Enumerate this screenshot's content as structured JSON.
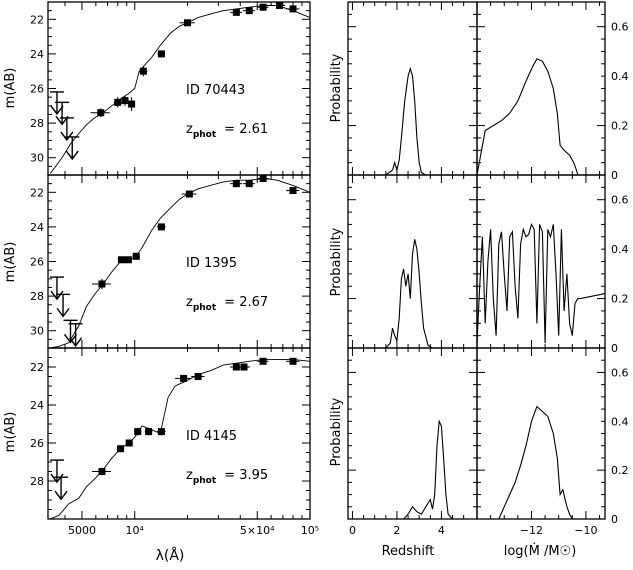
{
  "labels": {
    "sed_ylabel": "m(AB)",
    "sed_xlabel": "λ(Å)",
    "prob_ylabel": "Probability",
    "z_xlabel": "Redshift",
    "mass_xlabel": "log(Ṁ /M☉)",
    "zphot_prefix": "z",
    "zphot_sub": "phot"
  },
  "chart_data": [
    {
      "type": "line",
      "panel": "sed",
      "id_label": "ID 70443",
      "zphot_value": "= 2.61",
      "x_scale": "log",
      "xlim": [
        3200,
        100000
      ],
      "ylim": [
        31,
        21
      ],
      "x_ticks": [
        5000,
        10000,
        50000,
        100000
      ],
      "x_tick_labels": [
        "5000",
        "10⁴",
        "5×10⁴",
        "10⁵"
      ],
      "y_ticks": [
        22,
        24,
        26,
        28,
        30
      ],
      "y_tick_labels": [
        "22",
        "24",
        "26",
        "28",
        "30"
      ],
      "model": {
        "x": [
          3300,
          3600,
          3900,
          4300,
          4800,
          5300,
          5900,
          6600,
          7400,
          8300,
          9200,
          10000,
          10600,
          11500,
          12500,
          14000,
          16000,
          18000,
          20000,
          23000,
          27000,
          32000,
          38000,
          45000,
          55000,
          65000,
          80000,
          100000
        ],
        "y": [
          30.9,
          30.4,
          29.9,
          29.2,
          28.6,
          28.1,
          27.7,
          27.4,
          27.0,
          26.6,
          26.3,
          26.0,
          25.0,
          24.6,
          24.2,
          23.5,
          22.8,
          22.4,
          22.2,
          21.9,
          21.7,
          21.5,
          21.4,
          21.3,
          21.2,
          21.2,
          21.5,
          21.9
        ]
      },
      "photometry": {
        "x": [
          6400,
          8000,
          8800,
          9600,
          11200,
          14200,
          20000,
          38000,
          45000,
          54000,
          67000,
          80000
        ],
        "y": [
          27.4,
          26.8,
          26.7,
          26.9,
          25.0,
          24.0,
          22.2,
          21.6,
          21.5,
          21.3,
          21.2,
          21.4
        ],
        "xerr": [
          800,
          400,
          400,
          400,
          600,
          700,
          2000,
          3000,
          3500,
          4000,
          5000,
          7000
        ],
        "yerr": [
          0.25,
          0.3,
          0.3,
          0.4,
          0.3,
          0.2,
          0.1,
          0.1,
          0.1,
          0.1,
          0.1,
          0.15
        ]
      },
      "upper_limits": {
        "x": [
          3600,
          3850,
          4100,
          4400
        ],
        "y": [
          26.2,
          26.8,
          27.7,
          28.8
        ]
      }
    },
    {
      "type": "line",
      "panel": "sed",
      "id_label": "ID 1395",
      "zphot_value": "= 2.67",
      "x_scale": "log",
      "xlim": [
        3200,
        100000
      ],
      "ylim": [
        31,
        21
      ],
      "x_ticks": [
        5000,
        10000,
        50000,
        100000
      ],
      "x_tick_labels": [
        "5000",
        "10⁴",
        "5×10⁴",
        "10⁵"
      ],
      "y_ticks": [
        22,
        24,
        26,
        28,
        30
      ],
      "y_tick_labels": [
        "22",
        "24",
        "26",
        "28",
        "30"
      ],
      "model": {
        "x": [
          3300,
          3700,
          4200,
          4800,
          5300,
          5900,
          6600,
          7400,
          8300,
          9200,
          10000,
          11000,
          12500,
          14000,
          16000,
          18000,
          20000,
          23000,
          27000,
          32000,
          38000,
          45000,
          55000,
          65000,
          80000,
          100000
        ],
        "y": [
          31.0,
          30.9,
          30.7,
          29.7,
          28.6,
          27.9,
          27.3,
          26.6,
          26.0,
          25.9,
          25.8,
          25.2,
          24.2,
          23.5,
          22.9,
          22.4,
          22.1,
          21.8,
          21.6,
          21.4,
          21.3,
          21.3,
          21.2,
          21.3,
          21.6,
          22.0
        ]
      },
      "photometry": {
        "x": [
          6500,
          8400,
          9200,
          10200,
          14200,
          20500,
          38000,
          45000,
          54000,
          80000
        ],
        "y": [
          27.3,
          25.9,
          25.9,
          25.7,
          24.0,
          22.1,
          21.5,
          21.5,
          21.2,
          21.9
        ],
        "xerr": [
          800,
          400,
          400,
          500,
          800,
          2000,
          3000,
          3500,
          4000,
          7000
        ],
        "yerr": [
          0.3,
          0.15,
          0.15,
          0.15,
          0.15,
          0.1,
          0.1,
          0.1,
          0.1,
          0.15
        ]
      },
      "upper_limits": {
        "x": [
          3600,
          3900,
          4300,
          4600
        ],
        "y": [
          26.9,
          27.9,
          29.4,
          29.6
        ]
      }
    },
    {
      "type": "line",
      "panel": "sed",
      "id_label": "ID 4145",
      "zphot_value": "= 3.95",
      "x_scale": "log",
      "xlim": [
        3200,
        100000
      ],
      "ylim": [
        30,
        21
      ],
      "x_ticks": [
        5000,
        10000,
        50000,
        100000
      ],
      "x_tick_labels": [
        "5000",
        "10⁴",
        "5×10⁴",
        "10⁵"
      ],
      "y_ticks": [
        22,
        24,
        26,
        28
      ],
      "y_tick_labels": [
        "22",
        "24",
        "26",
        "28"
      ],
      "model": {
        "x": [
          3300,
          3700,
          4200,
          4800,
          5300,
          5900,
          6600,
          7400,
          8300,
          9200,
          10000,
          11000,
          12500,
          14000,
          15500,
          17000,
          19000,
          21000,
          23000,
          27000,
          32000,
          38000,
          45000,
          55000,
          65000,
          80000,
          100000
        ],
        "y": [
          30.0,
          29.8,
          29.2,
          28.9,
          28.3,
          27.9,
          27.4,
          26.8,
          26.3,
          26.0,
          25.7,
          25.1,
          25.3,
          25.5,
          23.6,
          23.0,
          22.8,
          22.6,
          22.4,
          22.2,
          21.9,
          21.8,
          21.7,
          21.6,
          21.6,
          21.6,
          21.7
        ]
      },
      "photometry": {
        "x": [
          6500,
          8300,
          9300,
          10400,
          12000,
          14200,
          19000,
          23000,
          38000,
          42000,
          54000,
          80000
        ],
        "y": [
          27.5,
          26.3,
          26.0,
          25.4,
          25.4,
          25.4,
          22.6,
          22.5,
          22.0,
          22.0,
          21.7,
          21.7
        ],
        "xerr": [
          800,
          400,
          400,
          500,
          600,
          800,
          2000,
          2000,
          3000,
          3500,
          4000,
          7000
        ],
        "yerr": [
          0.2,
          0.15,
          0.15,
          0.2,
          0.2,
          0.2,
          0.1,
          0.1,
          0.1,
          0.1,
          0.1,
          0.1
        ]
      },
      "upper_limits": {
        "x": [
          3600,
          3800
        ],
        "y": [
          26.9,
          27.8
        ]
      }
    },
    {
      "type": "line",
      "panel": "redshift_pdf",
      "xlim": [
        -0.2,
        5.6
      ],
      "ylim": [
        0,
        0.7
      ],
      "x_ticks": [
        0,
        2,
        4
      ],
      "x_tick_labels": [],
      "x": [
        0,
        1.5,
        1.8,
        1.9,
        2.0,
        2.1,
        2.2,
        2.35,
        2.5,
        2.6,
        2.7,
        2.8,
        2.9,
        3.0,
        3.1,
        3.3,
        5.6
      ],
      "y": [
        0,
        0,
        0.02,
        0.05,
        0.02,
        0.06,
        0.15,
        0.3,
        0.4,
        0.43,
        0.4,
        0.3,
        0.15,
        0.05,
        0.01,
        0,
        0
      ]
    },
    {
      "type": "line",
      "panel": "mass_pdf",
      "xlim": [
        -14.0,
        -9.3
      ],
      "ylim": [
        0,
        0.7
      ],
      "y_ticks": [
        0,
        0.2,
        0.4,
        0.6
      ],
      "y_tick_labels": [
        "0",
        "0.2",
        "0.4",
        "0.6"
      ],
      "x_tick_labels": [],
      "x": [
        -14.0,
        -13.7,
        -13.4,
        -13.1,
        -12.8,
        -12.5,
        -12.2,
        -11.95,
        -11.8,
        -11.6,
        -11.4,
        -11.2,
        -11.05,
        -10.95,
        -10.8,
        -10.6,
        -10.45,
        -10.35,
        -10.3,
        -9.3
      ],
      "y": [
        0,
        0.18,
        0.2,
        0.22,
        0.25,
        0.3,
        0.38,
        0.44,
        0.47,
        0.46,
        0.42,
        0.35,
        0.25,
        0.12,
        0.1,
        0.08,
        0.05,
        0.02,
        0,
        0
      ]
    },
    {
      "type": "line",
      "panel": "redshift_pdf",
      "xlim": [
        -0.2,
        5.6
      ],
      "ylim": [
        0,
        0.7
      ],
      "x_ticks": [
        0,
        2,
        4
      ],
      "x_tick_labels": [],
      "x": [
        0,
        1.5,
        1.7,
        1.8,
        1.9,
        2.0,
        2.1,
        2.2,
        2.3,
        2.4,
        2.5,
        2.6,
        2.7,
        2.8,
        2.9,
        3.0,
        3.1,
        3.2,
        3.4,
        3.6,
        5.6
      ],
      "y": [
        0,
        0,
        0.02,
        0.08,
        0.05,
        0.03,
        0.12,
        0.28,
        0.32,
        0.25,
        0.3,
        0.2,
        0.38,
        0.44,
        0.4,
        0.3,
        0.18,
        0.08,
        0.01,
        0,
        0
      ]
    },
    {
      "type": "line",
      "panel": "mass_pdf",
      "xlim": [
        -14.0,
        -9.3
      ],
      "ylim": [
        0,
        0.7
      ],
      "y_ticks": [
        0,
        0.2,
        0.4,
        0.6
      ],
      "y_tick_labels": [
        "0",
        "0.2",
        "0.4",
        "0.6"
      ],
      "x_tick_labels": [],
      "x": [
        -14.0,
        -13.9,
        -13.8,
        -13.7,
        -13.6,
        -13.5,
        -13.4,
        -13.3,
        -13.2,
        -13.1,
        -13.0,
        -12.9,
        -12.8,
        -12.7,
        -12.6,
        -12.5,
        -12.4,
        -12.3,
        -12.2,
        -12.1,
        -12.0,
        -11.9,
        -11.8,
        -11.7,
        -11.6,
        -11.5,
        -11.4,
        -11.3,
        -11.2,
        -11.1,
        -11.0,
        -10.9,
        -10.8,
        -10.7,
        -10.6,
        -10.5,
        -10.4,
        -10.3,
        -10.2,
        -9.3
      ],
      "y": [
        0.02,
        0.25,
        0.45,
        0.1,
        0.35,
        0.48,
        0.2,
        0.05,
        0.42,
        0.47,
        0.3,
        0.15,
        0.45,
        0.47,
        0.25,
        0.12,
        0.42,
        0.48,
        0.45,
        0.46,
        0.5,
        0.48,
        0.1,
        0.5,
        0.47,
        0.02,
        0.48,
        0.45,
        0.5,
        0.3,
        0.05,
        0.48,
        0.15,
        0.3,
        0.1,
        0.05,
        0.18,
        0.2,
        0.2,
        0.22
      ]
    },
    {
      "type": "line",
      "panel": "redshift_pdf",
      "xlim": [
        -0.2,
        5.6
      ],
      "ylim": [
        0,
        0.7
      ],
      "x_ticks": [
        0,
        2,
        4
      ],
      "x_tick_labels": [
        "0",
        "2",
        "4"
      ],
      "x": [
        0,
        2.3,
        2.5,
        2.7,
        2.9,
        3.1,
        3.3,
        3.5,
        3.6,
        3.7,
        3.8,
        3.9,
        4.0,
        4.1,
        4.2,
        4.3,
        4.5,
        5.6
      ],
      "y": [
        0,
        0,
        0.02,
        0.05,
        0.03,
        0.02,
        0.05,
        0.08,
        0.04,
        0.1,
        0.3,
        0.4,
        0.38,
        0.25,
        0.1,
        0.02,
        0,
        0
      ]
    },
    {
      "type": "line",
      "panel": "mass_pdf",
      "xlim": [
        -14.0,
        -9.3
      ],
      "ylim": [
        0,
        0.7
      ],
      "y_ticks": [
        0,
        0.2,
        0.4,
        0.6
      ],
      "y_tick_labels": [
        "0",
        "0.2",
        "0.4",
        "0.6"
      ],
      "x_ticks": [
        -12,
        -10
      ],
      "x_tick_labels": [
        "−12",
        "−10"
      ],
      "x": [
        -14.0,
        -13.2,
        -13.0,
        -12.8,
        -12.6,
        -12.4,
        -12.2,
        -12.0,
        -11.8,
        -11.6,
        -11.4,
        -11.2,
        -11.05,
        -10.95,
        -10.85,
        -10.7,
        -10.6,
        -10.5,
        -10.4,
        -9.3
      ],
      "y": [
        0,
        0,
        0.05,
        0.1,
        0.15,
        0.22,
        0.3,
        0.4,
        0.46,
        0.44,
        0.42,
        0.35,
        0.25,
        0.1,
        0.12,
        0.05,
        0.02,
        0,
        0,
        0
      ]
    }
  ]
}
